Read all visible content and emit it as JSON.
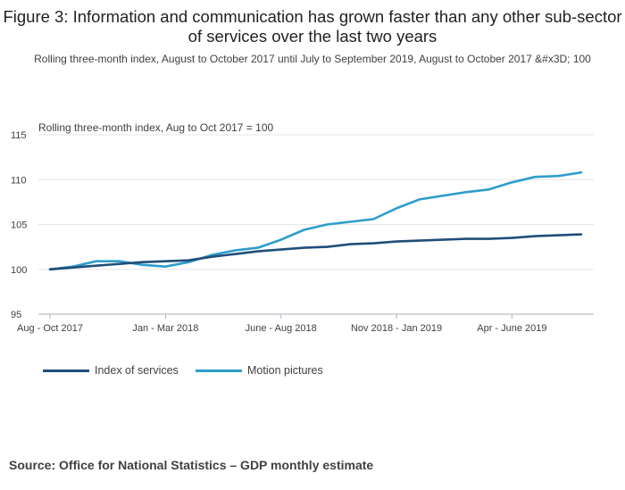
{
  "title": "Figure 3: Information and communication has grown faster than any other sub-sector of services over the last two years",
  "subtitle": "Rolling three-month index, August to October 2017 until July to September 2019, August to October 2017 &#x3D; 100",
  "source": "Source: Office for National Statistics – GDP monthly estimate",
  "colors": {
    "index_of_services": "#1f4e79",
    "motion_pictures": "#2e9dcb",
    "grid": "#e6e6e6",
    "axis": "#a8b2ba"
  },
  "chart_data": {
    "type": "line",
    "title": "Figure 3: Information and communication has grown faster than any other sub-sector of services over the last two years",
    "ylabel": "Rolling three-month index, Aug to Oct 2017 = 100",
    "xlabel": "",
    "ylim": [
      95,
      115
    ],
    "yticks": [
      "95",
      "100",
      "105",
      "110",
      "115"
    ],
    "ytick_values": [
      95,
      100,
      105,
      110,
      115
    ],
    "grid": true,
    "legend_position": "bottom-left",
    "x": [
      "Aug - Oct 2017",
      "Sep - Nov 2017",
      "Oct - Dec 2017",
      "Nov 2017 - Jan 2018",
      "Dec 2017 - Feb 2018",
      "Jan - Mar 2018",
      "Feb - Apr 2018",
      "Mar - May 2018",
      "Apr - June 2018",
      "May - July 2018",
      "June - Aug 2018",
      "July - Sep 2018",
      "Aug - Oct 2018",
      "Sep - Nov 2018",
      "Oct - Dec 2018",
      "Nov 2018 - Jan 2019",
      "Dec 2018 - Feb 2019",
      "Jan - Mar 2019",
      "Feb - Apr 2019",
      "Mar - May 2019",
      "Apr - June 2019",
      "May - July 2019",
      "June - Aug 2019",
      "July - Sep 2019"
    ],
    "xtick_labels": [
      {
        "index": 0,
        "label": "Aug - Oct 2017"
      },
      {
        "index": 5,
        "label": "Jan - Mar 2018"
      },
      {
        "index": 10,
        "label": "June - Aug 2018"
      },
      {
        "index": 15,
        "label": "Nov 2018 - Jan 2019"
      },
      {
        "index": 20,
        "label": "Apr - June 2019"
      }
    ],
    "series": [
      {
        "name": "Index of services",
        "color": "#1f4e79",
        "values": [
          100.0,
          100.2,
          100.4,
          100.6,
          100.8,
          100.9,
          101.0,
          101.4,
          101.7,
          102.0,
          102.2,
          102.4,
          102.5,
          102.8,
          102.9,
          103.1,
          103.2,
          103.3,
          103.4,
          103.4,
          103.5,
          103.7,
          103.8,
          103.9
        ]
      },
      {
        "name": "Motion pictures",
        "color": "#2e9dcb",
        "values": [
          100.0,
          100.3,
          100.9,
          100.9,
          100.5,
          100.3,
          100.8,
          101.6,
          102.1,
          102.4,
          103.3,
          104.4,
          105.0,
          105.3,
          105.6,
          106.8,
          107.8,
          108.2,
          108.6,
          108.9,
          109.7,
          110.3,
          110.4,
          110.8
        ]
      }
    ]
  }
}
